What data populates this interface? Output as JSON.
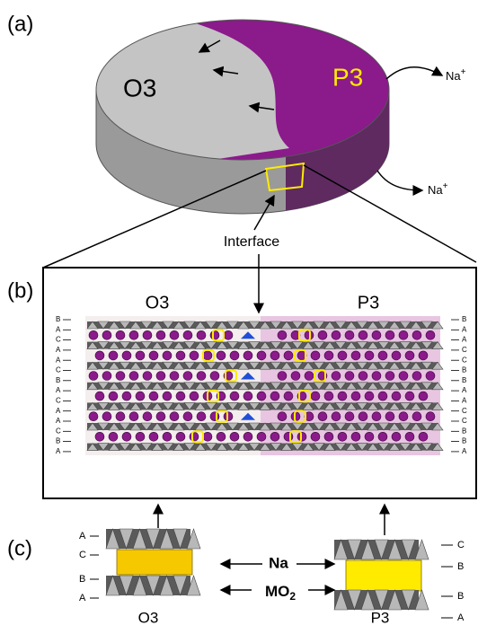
{
  "panel_a": {
    "label": "(a)",
    "left_phase": "O3",
    "right_phase": "P3",
    "ion_top": {
      "base": "Na",
      "sup": "+"
    },
    "ion_bottom": {
      "base": "Na",
      "sup": "+"
    },
    "interface": "Interface"
  },
  "panel_b": {
    "label": "(b)",
    "left_phase": "O3",
    "right_phase": "P3",
    "left_stacking": [
      "B",
      "A",
      "C",
      "A",
      "A",
      "C",
      "B",
      "A",
      "C",
      "A",
      "A",
      "C",
      "B",
      "A"
    ],
    "right_stacking": [
      "B",
      "A",
      "A",
      "C",
      "C",
      "B",
      "B",
      "A",
      "A",
      "C",
      "C",
      "B",
      "B",
      "A"
    ]
  },
  "panel_c": {
    "label": "(c)",
    "left_stacking": [
      "A",
      "C",
      "B",
      "A"
    ],
    "right_stacking": [
      "C",
      "B",
      "B",
      "A"
    ],
    "na": "Na",
    "mo2": {
      "base": "MO",
      "sub": "2"
    },
    "left_phase": "O3",
    "right_phase": "P3"
  }
}
